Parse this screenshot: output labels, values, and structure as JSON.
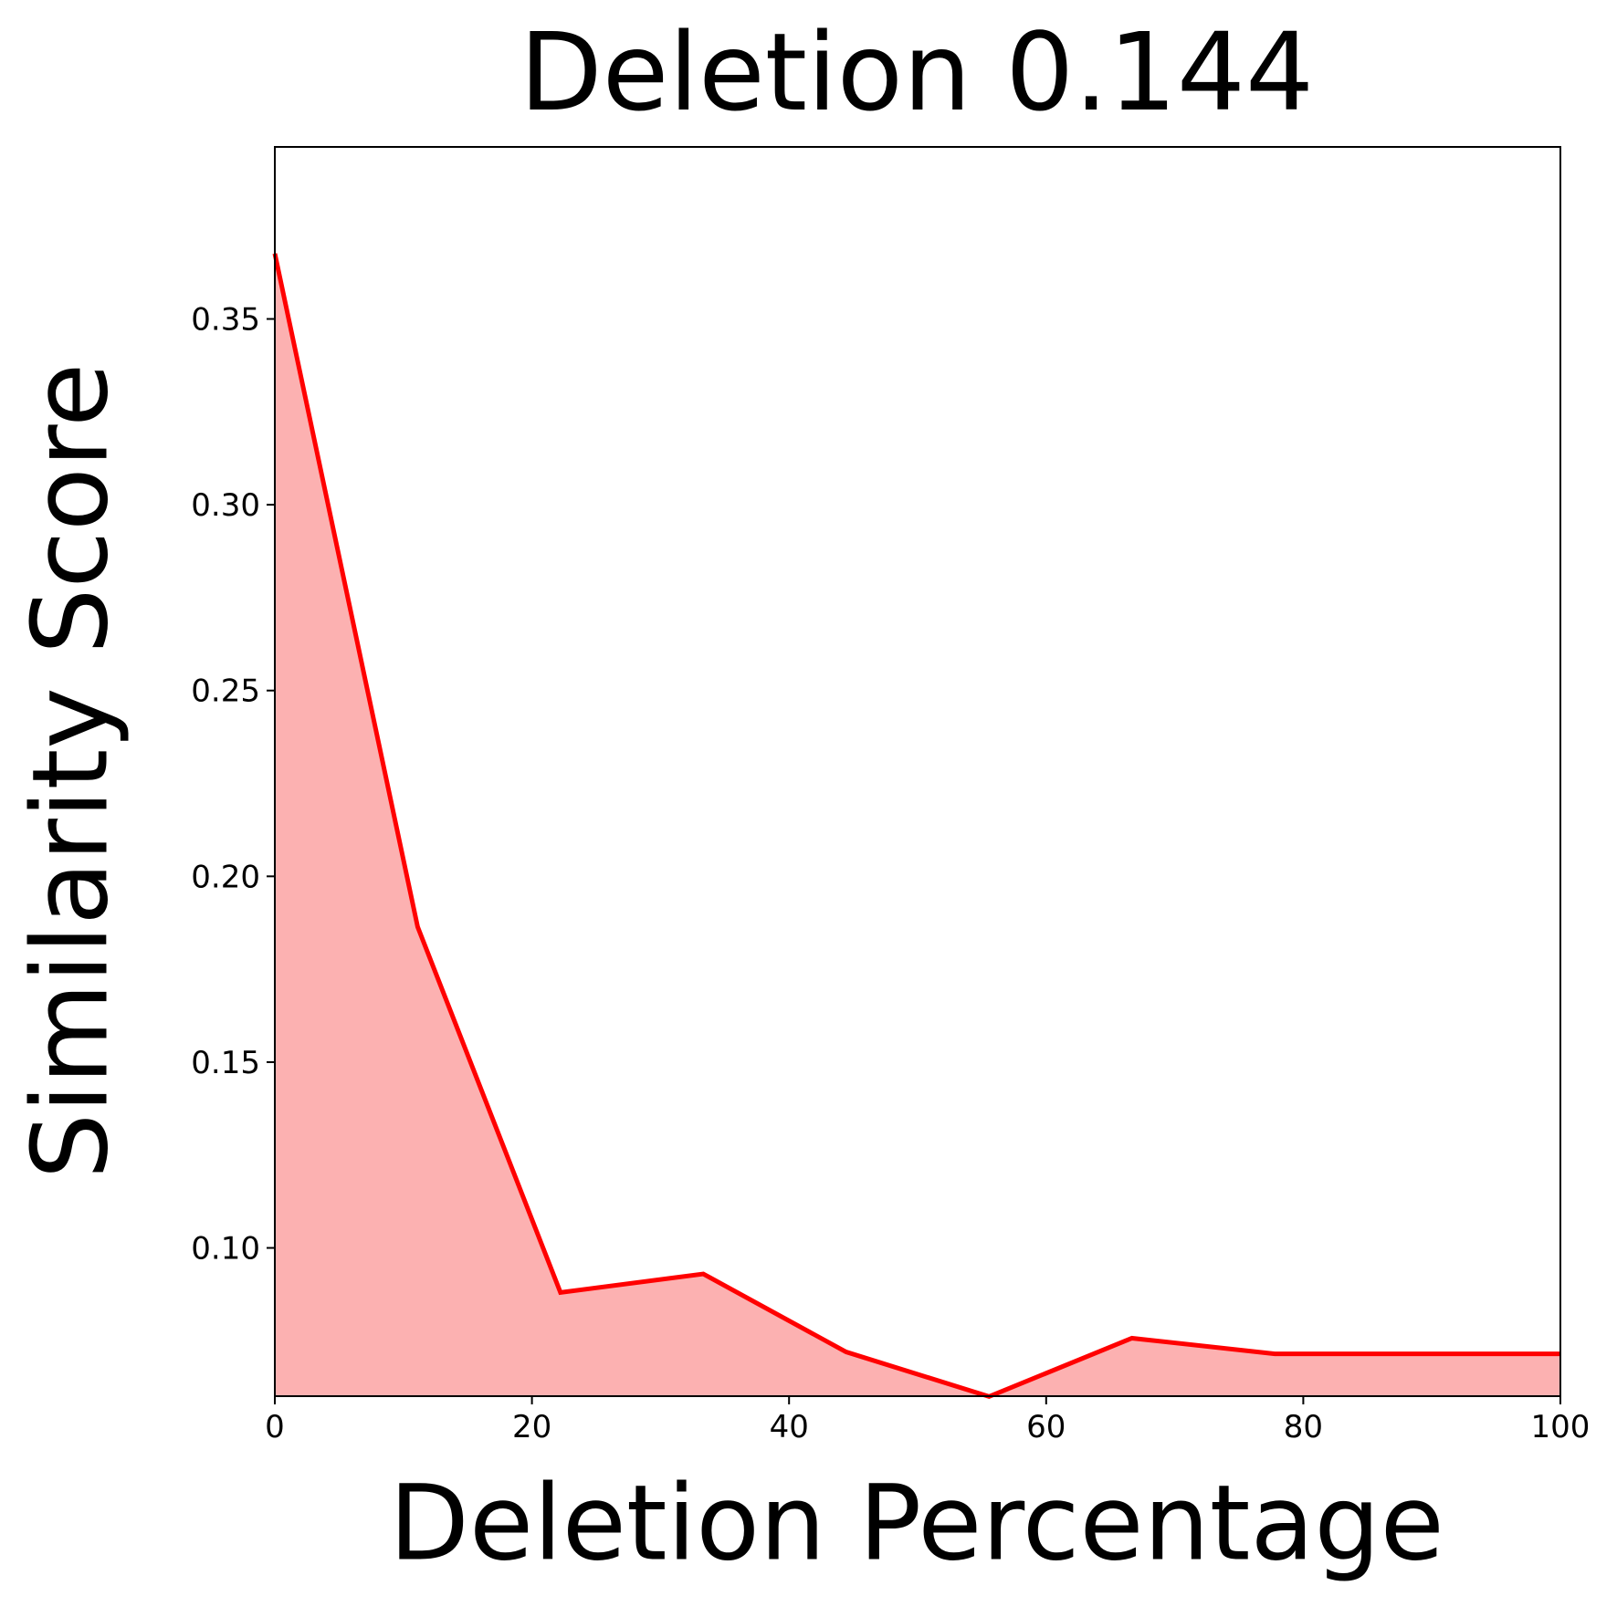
{
  "chart_data": {
    "type": "area",
    "title": "Deletion 0.144",
    "x_label": "Deletion Percentage",
    "y_label": "Similarity Score",
    "x": [
      0,
      11.11,
      22.22,
      33.33,
      44.44,
      55.56,
      66.67,
      77.78,
      88.89,
      100
    ],
    "series": [
      {
        "color": "#ff0000",
        "fill": "#fcb1b1",
        "values": [
          0.3676,
          0.1864,
          0.088,
          0.093,
          0.072,
          0.06,
          0.0757,
          0.0715,
          0.0715,
          0.0715
        ]
      }
    ],
    "xlim": [
      0,
      100
    ],
    "ylim": [
      0.0601,
      0.3963
    ],
    "xticks": [
      0,
      20,
      40,
      60,
      80,
      100
    ],
    "yticks": [
      {
        "value": 0.1,
        "label": "0.10"
      },
      {
        "value": 0.15,
        "label": "0.15"
      },
      {
        "value": 0.2,
        "label": "0.20"
      },
      {
        "value": 0.25,
        "label": "0.25"
      },
      {
        "value": 0.3,
        "label": "0.30"
      },
      {
        "value": 0.35,
        "label": "0.35"
      }
    ]
  }
}
